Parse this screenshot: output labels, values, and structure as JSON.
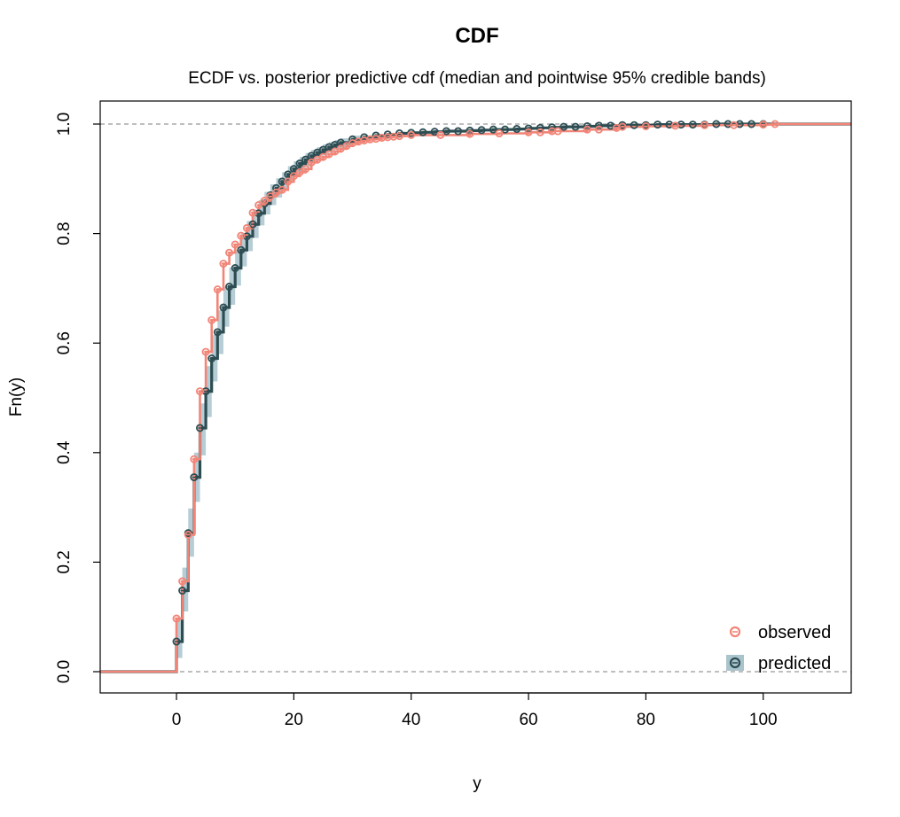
{
  "chart_data": {
    "type": "line",
    "title": "CDF",
    "subtitle": "ECDF vs. posterior predictive cdf (median and pointwise 95% credible bands)",
    "xlabel": "y",
    "ylabel": "Fn(y)",
    "xlim": [
      -13,
      115
    ],
    "ylim": [
      0,
      1
    ],
    "x_ticks": [
      0,
      20,
      40,
      60,
      80,
      100
    ],
    "y_ticks": [
      0.0,
      0.2,
      0.4,
      0.6,
      0.8,
      1.0
    ],
    "x_tick_labels": [
      "0",
      "20",
      "40",
      "60",
      "80",
      "100"
    ],
    "y_tick_labels": [
      "0.0",
      "0.2",
      "0.4",
      "0.6",
      "0.8",
      "1.0"
    ],
    "reference_lines": [
      0,
      1
    ],
    "grid": false,
    "legend_position": "bottom-right",
    "colors": {
      "observed": "#f28577",
      "predicted": "#2d4d52",
      "band": "#aac4ce",
      "reference": "#aaaaaa"
    },
    "series": [
      {
        "name": "observed",
        "type": "step",
        "x": [
          0,
          1,
          2,
          3,
          4,
          5,
          6,
          7,
          8,
          9,
          10,
          11,
          12,
          13,
          14,
          15,
          16,
          17,
          18,
          19,
          20,
          21,
          22,
          23,
          24,
          25,
          26,
          27,
          28,
          29,
          30,
          31,
          32,
          33,
          34,
          35,
          36,
          37,
          38,
          40,
          45,
          50,
          55,
          60,
          62,
          64,
          65,
          70,
          72,
          75,
          76,
          80,
          85,
          90,
          95,
          100,
          102
        ],
        "y": [
          0.097,
          0.165,
          0.25,
          0.388,
          0.512,
          0.584,
          0.642,
          0.698,
          0.745,
          0.765,
          0.78,
          0.796,
          0.81,
          0.838,
          0.852,
          0.86,
          0.868,
          0.875,
          0.88,
          0.895,
          0.905,
          0.912,
          0.918,
          0.93,
          0.935,
          0.94,
          0.945,
          0.95,
          0.955,
          0.96,
          0.965,
          0.968,
          0.97,
          0.972,
          0.973,
          0.975,
          0.976,
          0.977,
          0.978,
          0.98,
          0.98,
          0.982,
          0.983,
          0.985,
          0.985,
          0.987,
          0.987,
          0.99,
          0.99,
          0.993,
          0.995,
          0.996,
          0.997,
          0.998,
          0.998,
          0.999,
          1.0
        ]
      },
      {
        "name": "predicted",
        "type": "step",
        "x": [
          0,
          1,
          2,
          3,
          4,
          5,
          6,
          7,
          8,
          9,
          10,
          11,
          12,
          13,
          14,
          15,
          16,
          17,
          18,
          19,
          20,
          21,
          22,
          23,
          24,
          25,
          26,
          27,
          28,
          30,
          32,
          34,
          36,
          38,
          40,
          42,
          44,
          46,
          48,
          50,
          52,
          54,
          56,
          58,
          60,
          62,
          64,
          66,
          68,
          70,
          72,
          74,
          76,
          78,
          80,
          82,
          84,
          86,
          88,
          90,
          92,
          94,
          96,
          98,
          100
        ],
        "y": [
          0.055,
          0.148,
          0.253,
          0.355,
          0.445,
          0.512,
          0.572,
          0.62,
          0.665,
          0.703,
          0.737,
          0.77,
          0.795,
          0.817,
          0.837,
          0.855,
          0.87,
          0.883,
          0.895,
          0.908,
          0.918,
          0.928,
          0.935,
          0.942,
          0.948,
          0.953,
          0.958,
          0.962,
          0.966,
          0.972,
          0.976,
          0.979,
          0.981,
          0.983,
          0.984,
          0.985,
          0.986,
          0.987,
          0.987,
          0.988,
          0.989,
          0.99,
          0.99,
          0.991,
          0.992,
          0.993,
          0.994,
          0.995,
          0.995,
          0.996,
          0.997,
          0.997,
          0.998,
          0.998,
          0.998,
          0.999,
          0.999,
          0.999,
          0.999,
          0.999,
          1.0,
          1.0,
          1.0,
          1.0,
          1.0
        ]
      }
    ],
    "band": {
      "name": "predicted",
      "x": [
        0,
        1,
        2,
        3,
        4,
        5,
        6,
        7,
        8,
        9,
        10,
        11,
        12,
        13,
        14,
        15,
        16,
        17,
        18,
        19,
        20,
        21,
        22,
        23,
        24,
        25,
        26,
        27,
        28,
        30
      ],
      "lower": [
        0.025,
        0.11,
        0.21,
        0.31,
        0.395,
        0.465,
        0.53,
        0.58,
        0.63,
        0.67,
        0.705,
        0.74,
        0.768,
        0.792,
        0.815,
        0.835,
        0.852,
        0.866,
        0.879,
        0.892,
        0.903,
        0.914,
        0.922,
        0.93,
        0.937,
        0.943,
        0.948,
        0.953,
        0.957,
        0.963
      ],
      "upper": [
        0.095,
        0.19,
        0.298,
        0.4,
        0.49,
        0.558,
        0.615,
        0.66,
        0.703,
        0.738,
        0.77,
        0.8,
        0.823,
        0.843,
        0.861,
        0.876,
        0.89,
        0.901,
        0.912,
        0.923,
        0.932,
        0.94,
        0.947,
        0.953,
        0.958,
        0.963,
        0.967,
        0.971,
        0.974,
        0.979
      ]
    },
    "legend": [
      {
        "label": "observed",
        "symbol": "circle"
      },
      {
        "label": "predicted",
        "symbol": "circle-with-band"
      }
    ]
  }
}
